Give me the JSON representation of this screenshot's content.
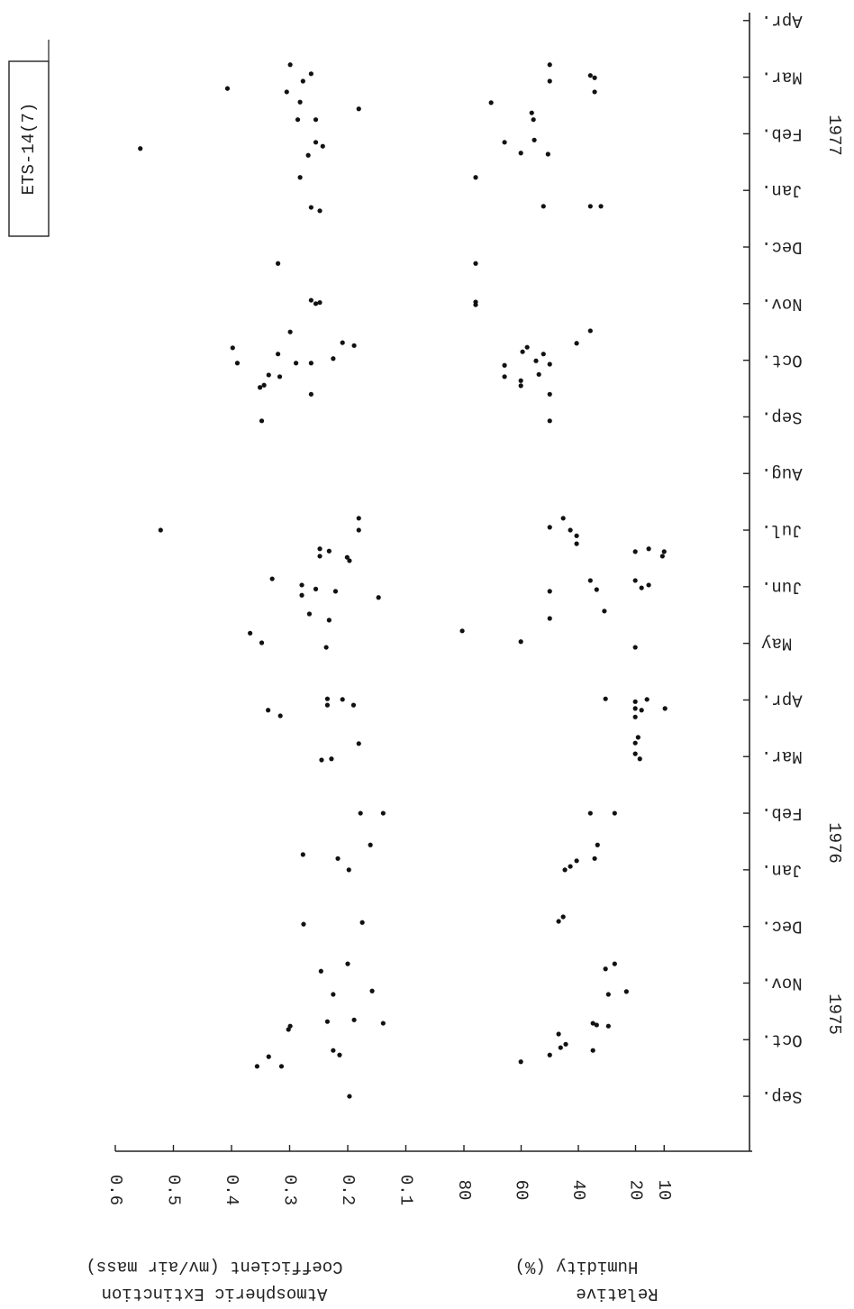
{
  "chart_data": {
    "type": "scatter",
    "annotation": "ETS-14(7)",
    "ylabel_lines": [
      "Atmospheric Extinction",
      "Coefficient (mv/air mass)"
    ],
    "y2label_lines": [
      "Relative",
      "Humidity (%)"
    ],
    "year_labels": [
      "1975",
      "1976",
      "1977"
    ],
    "xlim": [
      -0.97,
      19.14
    ],
    "xticks": [
      {
        "value": 0,
        "label": "Sep."
      },
      {
        "value": 1,
        "label": "Oct."
      },
      {
        "value": 2,
        "label": "Nov."
      },
      {
        "value": 3,
        "label": "Dec."
      },
      {
        "value": 4,
        "label": "Jan."
      },
      {
        "value": 5,
        "label": "Feb."
      },
      {
        "value": 6,
        "label": "Mar."
      },
      {
        "value": 7,
        "label": "Apr."
      },
      {
        "value": 8,
        "label": "May"
      },
      {
        "value": 9,
        "label": "Jun."
      },
      {
        "value": 10,
        "label": "Jul."
      },
      {
        "value": 11,
        "label": "Aug."
      },
      {
        "value": 12,
        "label": "Sep."
      },
      {
        "value": 13,
        "label": "Oct."
      },
      {
        "value": 14,
        "label": "Nov."
      },
      {
        "value": 15,
        "label": "Dec."
      },
      {
        "value": 16,
        "label": "Jan."
      },
      {
        "value": 17,
        "label": "Feb."
      },
      {
        "value": 18,
        "label": "Mar."
      },
      {
        "value": 19,
        "label": "Apr."
      }
    ],
    "ylim": [
      0.6,
      0
    ],
    "yticks": [
      {
        "value": 0.6,
        "label": "0.6"
      },
      {
        "value": 0.5,
        "label": "0.5"
      },
      {
        "value": 0.4,
        "label": "0.4"
      },
      {
        "value": 0.3,
        "label": "0.3"
      },
      {
        "value": 0.2,
        "label": "0.2"
      },
      {
        "value": 0.1,
        "label": "0.1"
      }
    ],
    "y2lim": [
      80,
      0
    ],
    "y2ticks": [
      80,
      60,
      40,
      20,
      10
    ],
    "series": [
      {
        "color": "#111",
        "x": [
          0.0,
          0.53,
          0.7,
          0.53,
          0.81,
          0.73,
          1.18,
          1.24,
          1.32,
          1.35,
          1.29,
          1.8,
          1.86,
          2.21,
          2.34,
          3.04,
          3.07,
          4.2,
          4.0,
          4.27,
          4.44,
          5.0,
          5.0,
          5.94,
          5.96,
          6.23,
          6.82,
          6.72,
          7.02,
          6.91,
          7.01,
          6.91,
          8.18,
          8.01,
          7.93,
          8.52,
          8.41,
          9.14,
          9.03,
          8.96,
          8.85,
          8.92,
          8.81,
          9.67,
          9.54,
          9.63,
          9.52,
          9.46,
          10.21,
          10.0,
          10.0,
          11.93,
          12.52,
          12.56,
          12.74,
          12.71,
          12.4,
          12.95,
          13.03,
          12.95,
          12.95,
          13.22,
          13.11,
          13.31,
          13.26,
          13.5,
          14.06,
          14.0,
          14.02,
          14.71,
          16.23,
          15.7,
          15.64,
          16.74,
          16.62,
          16.78,
          16.85,
          17.25,
          17.25,
          17.44,
          17.56,
          17.74,
          17.8,
          17.93,
          18.06,
          18.22
        ],
        "values": [
          0.197,
          0.356,
          0.336,
          0.314,
          0.225,
          0.214,
          0.302,
          0.299,
          0.235,
          0.189,
          0.139,
          0.225,
          0.158,
          0.246,
          0.2,
          0.276,
          0.175,
          0.217,
          0.198,
          0.277,
          0.161,
          0.178,
          0.139,
          0.245,
          0.228,
          0.181,
          0.337,
          0.316,
          0.235,
          0.235,
          0.209,
          0.19,
          0.368,
          0.348,
          0.237,
          0.266,
          0.232,
          0.33,
          0.279,
          0.255,
          0.279,
          0.221,
          0.147,
          0.248,
          0.248,
          0.232,
          0.201,
          0.197,
          0.181,
          0.181,
          0.522,
          0.348,
          0.351,
          0.344,
          0.336,
          0.317,
          0.263,
          0.263,
          0.225,
          0.289,
          0.39,
          0.398,
          0.32,
          0.209,
          0.189,
          0.299,
          0.263,
          0.255,
          0.248,
          0.32,
          0.282,
          0.263,
          0.248,
          0.557,
          0.268,
          0.243,
          0.255,
          0.286,
          0.255,
          0.181,
          0.282,
          0.305,
          0.407,
          0.277,
          0.263,
          0.299
        ]
      },
      {
        "color": "#111",
        "axis": "y2",
        "x": [
          0.61,
          0.73,
          0.86,
          0.92,
          1.1,
          0.81,
          1.29,
          1.26,
          1.24,
          1.8,
          1.85,
          2.25,
          2.34,
          3.09,
          3.17,
          4.0,
          4.06,
          4.16,
          4.2,
          4.44,
          5.0,
          5.0,
          6.05,
          5.96,
          6.34,
          6.24,
          6.7,
          6.85,
          6.82,
          6.97,
          6.85,
          7.01,
          7.02,
          8.22,
          8.03,
          7.93,
          8.44,
          8.57,
          8.92,
          9.11,
          8.95,
          9.11,
          8.98,
          9.03,
          9.62,
          9.67,
          9.62,
          9.54,
          9.9,
          9.76,
          10.05,
          10.21,
          10.0,
          11.93,
          12.4,
          12.55,
          12.64,
          12.71,
          12.91,
          12.75,
          12.99,
          12.93,
          13.11,
          13.23,
          13.15,
          13.3,
          13.52,
          14.03,
          13.98,
          14.71,
          16.23,
          15.72,
          15.72,
          15.72,
          16.85,
          16.66,
          16.89,
          16.64,
          17.37,
          17.25,
          17.55,
          17.74,
          18.03,
          17.99,
          17.93,
          18.22
        ],
        "values": [
          60.1,
          50.0,
          46.2,
          44.4,
          46.9,
          34.9,
          34.9,
          33.6,
          29.5,
          29.5,
          23.2,
          30.5,
          27.3,
          46.9,
          45.3,
          44.7,
          42.8,
          40.6,
          34.3,
          33.3,
          35.8,
          27.3,
          20.1,
          18.5,
          19.1,
          20.1,
          20.1,
          20.1,
          17.9,
          20.1,
          9.7,
          16.0,
          30.5,
          80.6,
          60.1,
          20.1,
          50.0,
          30.9,
          50.0,
          35.8,
          33.6,
          20.1,
          17.9,
          15.4,
          20.1,
          15.4,
          10.0,
          10.6,
          40.6,
          40.6,
          50.0,
          45.3,
          42.8,
          50.0,
          50.0,
          60.1,
          60.1,
          65.8,
          65.8,
          53.8,
          54.8,
          50.0,
          52.2,
          57.9,
          59.5,
          40.6,
          35.8,
          75.9,
          75.9,
          75.9,
          75.9,
          52.2,
          32.1,
          35.8,
          65.8,
          60.1,
          55.4,
          50.6,
          56.3,
          55.7,
          70.5,
          34.3,
          35.8,
          34.3,
          50.0,
          50.0
        ]
      }
    ]
  }
}
